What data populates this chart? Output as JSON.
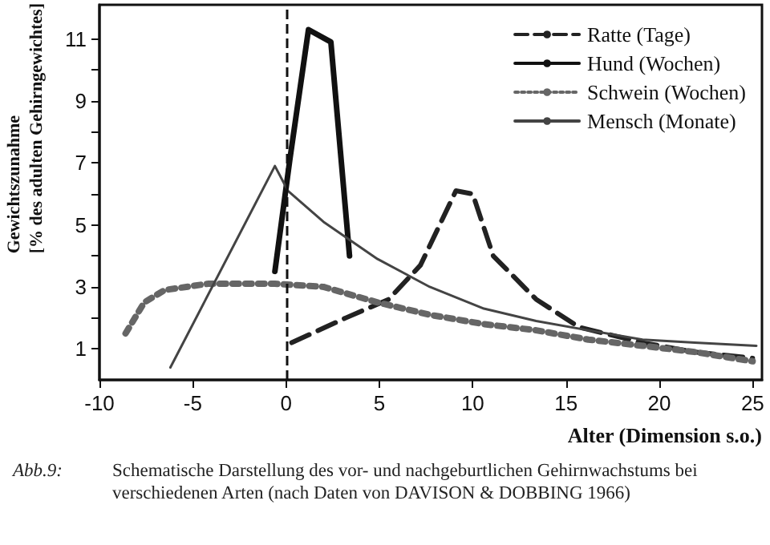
{
  "chart_data": {
    "type": "line",
    "xlabel": "Alter (Dimension s.o.)",
    "ylabel": "Gewichtszunahme\n[% des adulten Gehirngewichtes]",
    "annotations": [
      "Abb.9:",
      "Schematische Darstellung des vor- und nachgeburtlichen Gehirnwachstums bei verschiedenen Arten (nach Daten von DAVISON & DOBBING 1966)"
    ],
    "series": [
      {
        "name": "Ratte (Tage)",
        "color": "#222222",
        "line_style": "dashed",
        "x": [
          0.3,
          3.2,
          5.5,
          7.2,
          9.1,
          10.0,
          11.1,
          13.4,
          15.7,
          19.1,
          21.9,
          25.0
        ],
        "values": [
          1.2,
          2.0,
          2.6,
          3.7,
          6.1,
          6.0,
          4.0,
          2.6,
          1.7,
          1.2,
          0.9,
          0.7
        ]
      },
      {
        "name": "Hund (Wochen)",
        "color": "#111111",
        "line_style": "solid",
        "x": [
          -0.6,
          0.2,
          1.2,
          2.4,
          3.4
        ],
        "values": [
          3.5,
          7.1,
          11.3,
          10.9,
          4.0
        ]
      },
      {
        "name": "Schwein (Wochen)",
        "color": "#666666",
        "line_style": "dotted",
        "x": [
          -8.6,
          -7.6,
          -6.5,
          -4.2,
          -0.6,
          2.0,
          4.9,
          7.7,
          10.6,
          13.4,
          16.2,
          19.1,
          21.9,
          25.0
        ],
        "values": [
          1.5,
          2.5,
          2.9,
          3.1,
          3.1,
          3.0,
          2.5,
          2.1,
          1.8,
          1.6,
          1.3,
          1.1,
          0.9,
          0.6
        ]
      },
      {
        "name": "Mensch (Monate)",
        "color": "#444444",
        "line_style": "solid",
        "x": [
          -6.2,
          -0.6,
          0.1,
          2.0,
          4.9,
          7.7,
          10.6,
          13.4,
          16.2,
          19.1,
          21.9,
          25.2
        ],
        "values": [
          0.4,
          6.9,
          6.1,
          5.1,
          3.9,
          3.0,
          2.3,
          1.9,
          1.6,
          1.3,
          1.2,
          1.1
        ]
      }
    ],
    "xlim": [
      -10,
      25.5
    ],
    "xticks": [
      -10,
      -5,
      0,
      5,
      10,
      15,
      20,
      25
    ],
    "ylim": [
      0,
      12.1
    ],
    "yticks": [
      1,
      {
        "value": 2,
        "label": null
      },
      3,
      {
        "value": 4,
        "label": null
      },
      5,
      {
        "value": 6,
        "label": null
      },
      7,
      {
        "value": 8,
        "label": null
      },
      9,
      {
        "value": 10,
        "label": null
      },
      11
    ],
    "ref_lines": [
      {
        "axis": "x",
        "value": 0,
        "line_style": "dashed",
        "color": "#111111"
      }
    ],
    "legend": "top right",
    "grid": false,
    "marker": "none"
  }
}
